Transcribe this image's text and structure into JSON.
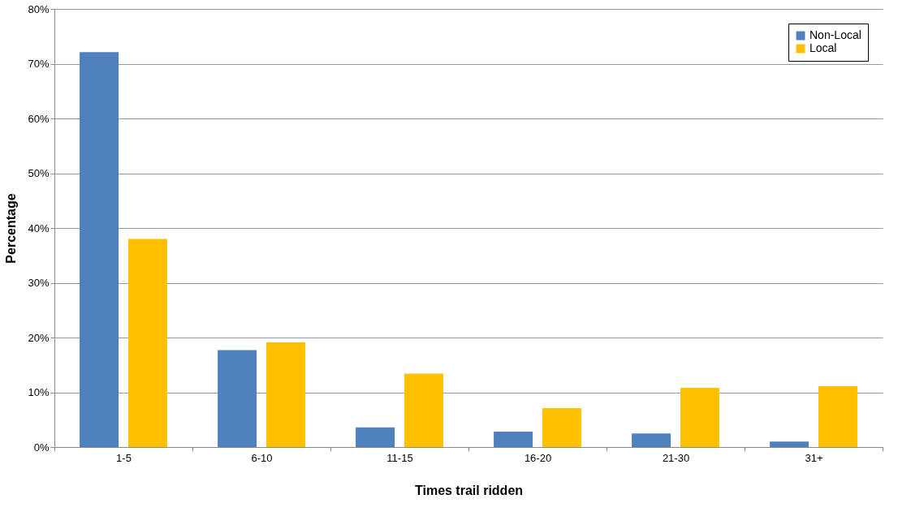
{
  "chart_data": {
    "type": "bar",
    "xlabel": "Times trail ridden",
    "ylabel": "Percentage",
    "categories": [
      "1-5",
      "6-10",
      "11-15",
      "16-20",
      "21-30",
      "31+"
    ],
    "series": [
      {
        "name": "Non-Local",
        "color": "#4f81bd",
        "values": [
          72.1,
          17.7,
          3.6,
          2.8,
          2.5,
          1.0
        ]
      },
      {
        "name": "Local",
        "color": "#ffc000",
        "values": [
          38.0,
          19.1,
          13.4,
          7.1,
          10.8,
          11.1
        ]
      }
    ],
    "ylim": [
      0,
      80
    ],
    "yticks": [
      {
        "value": 0,
        "label": "0%"
      },
      {
        "value": 10,
        "label": "10%"
      },
      {
        "value": 20,
        "label": "20%"
      },
      {
        "value": 30,
        "label": "30%"
      },
      {
        "value": 40,
        "label": "40%"
      },
      {
        "value": 50,
        "label": "50%"
      },
      {
        "value": 60,
        "label": "60%"
      },
      {
        "value": 70,
        "label": "70%"
      },
      {
        "value": 80,
        "label": "80%"
      }
    ],
    "grid": "y",
    "legend": "top right"
  }
}
